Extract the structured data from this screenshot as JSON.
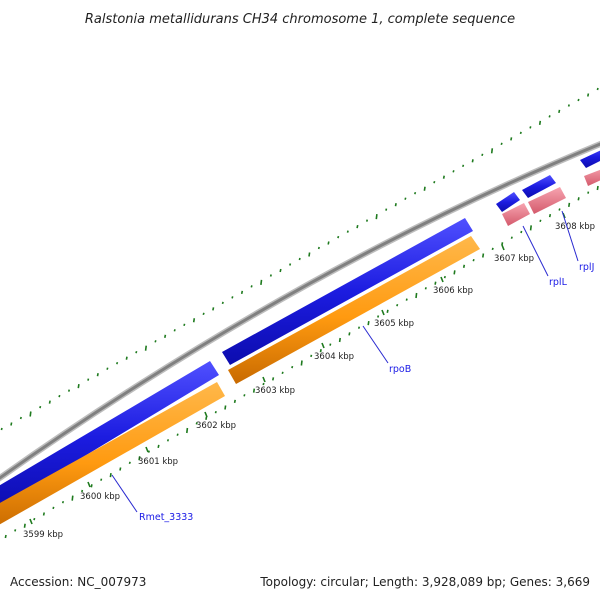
{
  "title": "Ralstonia metallidurans CH34 chromosome 1, complete sequence",
  "footer": {
    "accession": "Accession: NC_007973",
    "summary": "Topology: circular; Length: 3,928,089 bp; Genes: 3,669"
  },
  "ticks": [
    "3599 kbp",
    "3600 kbp",
    "3601 kbp",
    "3602 kbp",
    "3603 kbp",
    "3604 kbp",
    "3605 kbp",
    "3606 kbp",
    "3607 kbp",
    "3608 kbp"
  ],
  "gene_labels": [
    "Rmet_3333",
    "rpoB",
    "rplL",
    "rplJ"
  ],
  "colors": {
    "backbone": "#8c8c8c",
    "forward_cds": "#1f1fe6",
    "reverse_cds": "#ff9f1a",
    "rna": "#e87a8c",
    "gc_ticks": "#1e7a1e",
    "label_line": "#2a2ad0"
  }
}
